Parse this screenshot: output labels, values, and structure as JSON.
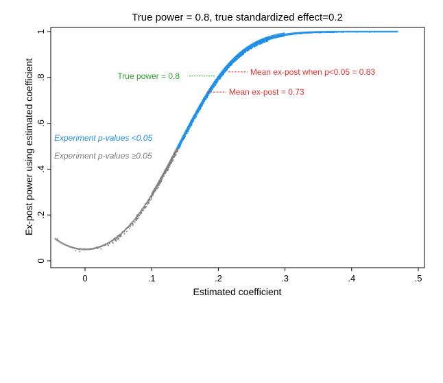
{
  "chart_data": {
    "type": "scatter",
    "title": "True power = 0.8, true standardized effect=0.2",
    "xlabel": "Estimated coefficient",
    "ylabel": "Ex-post power using estimated coefficient",
    "xlim": [
      -0.05,
      0.51
    ],
    "ylim": [
      -0.02,
      1.02
    ],
    "x_ticks": [
      0,
      0.1,
      0.2,
      0.3,
      0.4,
      0.5
    ],
    "x_tick_labels": [
      "0",
      ".1",
      ".2",
      ".3",
      ".4",
      ".5"
    ],
    "y_ticks": [
      0,
      0.2,
      0.4,
      0.6,
      0.8,
      1
    ],
    "y_tick_labels": [
      "0",
      ".2",
      ".4",
      ".6",
      ".8",
      "1"
    ],
    "grid": false,
    "significance_threshold_x": 0.139,
    "series": [
      {
        "name": "Experiment p-values <0.05",
        "color": "#1f8fe8",
        "x_range": [
          0.139,
          0.47
        ]
      },
      {
        "name": "Experiment p-values ≥0.05",
        "color": "#7f7f7f",
        "x_range": [
          -0.045,
          0.139
        ]
      }
    ],
    "annotations": [
      {
        "text": "True power = 0.8",
        "color": "#2ca02c",
        "x": 0.2,
        "y": 0.8
      },
      {
        "text": "Mean ex-post when p<0.05 = 0.83",
        "color": "#e53030",
        "x": 0.217,
        "y": 0.83
      },
      {
        "text": "Mean ex-post = 0.73",
        "color": "#e53030",
        "x": 0.185,
        "y": 0.73
      }
    ]
  }
}
